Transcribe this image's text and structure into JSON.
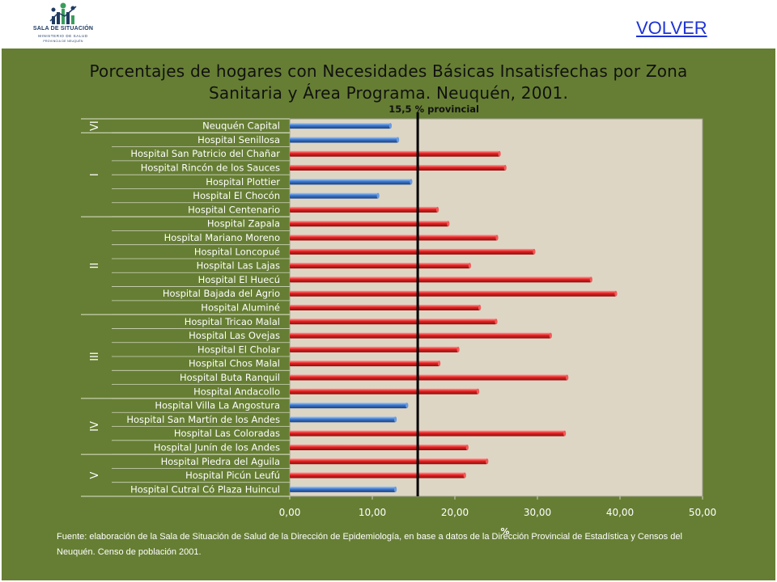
{
  "header": {
    "logo_line1": "SALA DE SITUACIÓN",
    "logo_line2": "MINISTERIO DE SALUD",
    "logo_line3": "PROVINCIA DE NEUQUÉN",
    "volver_label": "VOLVER"
  },
  "footer": {
    "source_text": "Fuente: elaboración de la Sala de Situación de Salud de la Dirección de Epidemiología, en base a datos de la Dirección Provincial de Estadística y Censos del Neuquén. Censo de población 2001."
  },
  "colors": {
    "panel_bg": "#667e33",
    "plot_bg": "#ddd6c4",
    "bar_red": "#e82020",
    "bar_blue": "#3a78d0",
    "reference_line": "#000000",
    "link": "#1d33d6"
  },
  "chart_data": {
    "type": "bar",
    "orientation": "horizontal",
    "title": "Porcentajes de hogares con Necesidades Básicas Insatisfechas por Zona Sanitaria y Área Programa. Neuquén, 2001.",
    "xlabel": "%",
    "xlim": [
      0,
      50
    ],
    "xticks": [
      "0,00",
      "10,00",
      "20,00",
      "30,00",
      "40,00",
      "50,00"
    ],
    "reference_line": {
      "value": 15.5,
      "label": "15,5 % provincial"
    },
    "zones": [
      {
        "label": "VI",
        "start": 0,
        "end": 0
      },
      {
        "label": "I",
        "start": 1,
        "end": 6
      },
      {
        "label": "II",
        "start": 7,
        "end": 13
      },
      {
        "label": "III",
        "start": 14,
        "end": 19
      },
      {
        "label": "IV",
        "start": 20,
        "end": 23
      },
      {
        "label": "V",
        "start": 24,
        "end": 26
      }
    ],
    "categories": [
      "Neuquén Capital",
      "Hospital Senillosa",
      "Hospital San Patricio del Chañar",
      "Hospital Rincón de los Sauces",
      "Hospital Plottier",
      "Hospital El Chocón",
      "Hospital Centenario",
      "Hospital Zapala",
      "Hospital Mariano Moreno",
      "Hospital Loncopué",
      "Hospital Las Lajas",
      "Hospital El Huecú",
      "Hospital Bajada del Agrio",
      "Hospital Aluminé",
      "Hospital Tricao Malal",
      "Hospital Las Ovejas",
      "Hospital El Cholar",
      "Hospital Chos Malal",
      "Hospital Buta Ranquil",
      "Hospital Andacollo",
      "Hospital Villa La Angostura",
      "Hospital San Martín de los Andes",
      "Hospital Las Coloradas",
      "Hospital Junín de los Andes",
      "Hospital Piedra del Aguila",
      "Hospital Picún Leufú",
      "Hospital Cutral Có Plaza Huincul"
    ],
    "values": [
      12.2,
      13.1,
      25.4,
      26.1,
      14.7,
      10.7,
      17.9,
      19.2,
      25.1,
      29.6,
      21.8,
      36.5,
      39.5,
      23.0,
      25.0,
      31.6,
      20.4,
      18.1,
      33.6,
      22.8,
      14.2,
      12.8,
      33.3,
      21.5,
      23.9,
      21.2,
      12.8
    ],
    "bar_colors": [
      "blue",
      "blue",
      "red",
      "red",
      "blue",
      "blue",
      "red",
      "red",
      "red",
      "red",
      "red",
      "red",
      "red",
      "red",
      "red",
      "red",
      "red",
      "red",
      "red",
      "red",
      "blue",
      "blue",
      "red",
      "red",
      "red",
      "red",
      "blue"
    ]
  }
}
